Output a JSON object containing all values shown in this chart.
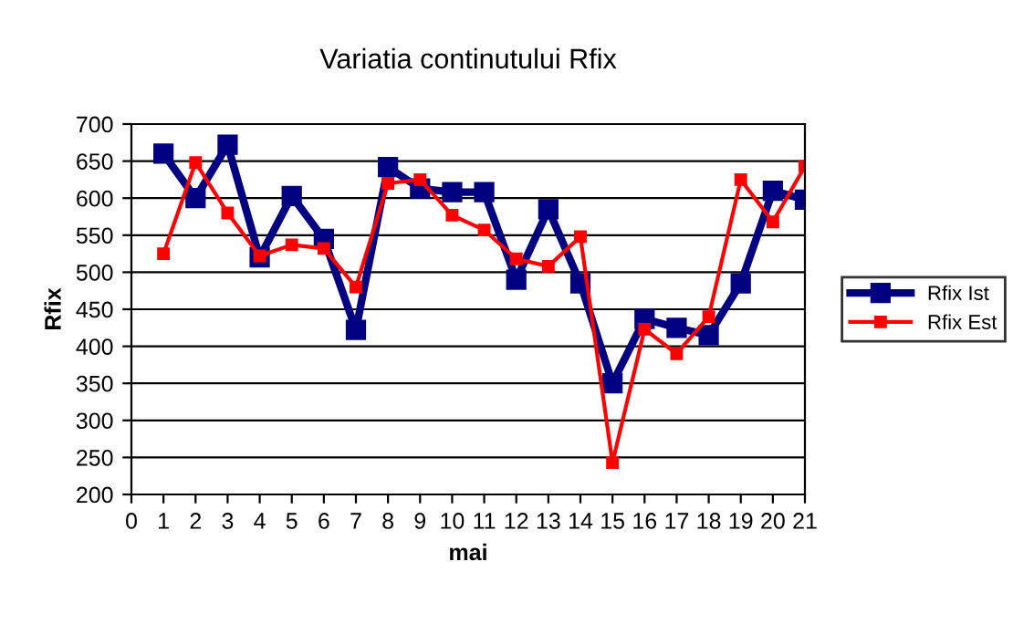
{
  "chart_data": {
    "type": "line",
    "title": "Variatia continutului Rfix",
    "xlabel": "mai",
    "ylabel": "Rfix",
    "x": [
      1,
      2,
      3,
      4,
      5,
      6,
      7,
      8,
      9,
      10,
      11,
      12,
      13,
      14,
      15,
      16,
      17,
      18,
      19,
      20,
      21
    ],
    "series": [
      {
        "name": "Rfix Ist",
        "color": "#000080",
        "values": [
          660,
          600,
          672,
          520,
          603,
          545,
          422,
          642,
          613,
          608,
          608,
          490,
          585,
          485,
          350,
          437,
          425,
          415,
          485,
          610,
          598
        ]
      },
      {
        "name": "Rfix Est",
        "color": "#ff0000",
        "values": [
          525,
          648,
          580,
          522,
          537,
          532,
          480,
          620,
          625,
          577,
          557,
          518,
          508,
          548,
          243,
          423,
          390,
          440,
          625,
          568,
          643
        ]
      }
    ],
    "xlim": [
      0,
      21
    ],
    "xticks": [
      0,
      1,
      2,
      3,
      4,
      5,
      6,
      7,
      8,
      9,
      10,
      11,
      12,
      13,
      14,
      15,
      16,
      17,
      18,
      19,
      20,
      21
    ],
    "ylim": [
      200,
      700
    ],
    "yticks": [
      200,
      250,
      300,
      350,
      400,
      450,
      500,
      550,
      600,
      650,
      700
    ],
    "grid": "y",
    "legend": "right",
    "marker": "square",
    "line_style": "solid"
  }
}
